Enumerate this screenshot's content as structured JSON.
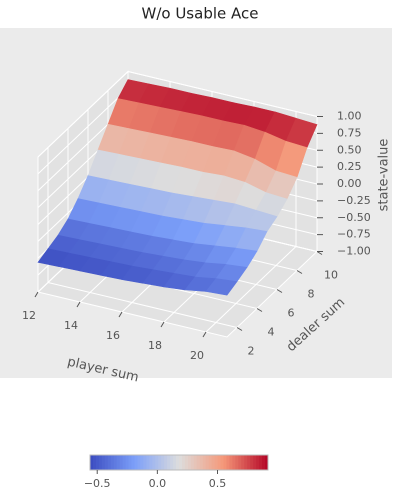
{
  "chart_data": {
    "type": "surface",
    "title": "W/o Usable Ace",
    "xlabel": "player sum",
    "ylabel": "dealer sum",
    "zlabel": "state-value",
    "x": [
      12,
      13,
      14,
      15,
      16,
      17,
      18,
      19,
      20,
      21
    ],
    "y": [
      1,
      2,
      3,
      4,
      5,
      6,
      7,
      8,
      9,
      10
    ],
    "z": [
      [
        -0.56,
        -0.5,
        -0.44,
        -0.34,
        -0.18,
        0.02,
        0.26,
        0.5,
        0.74,
        0.88
      ],
      [
        -0.55,
        -0.49,
        -0.43,
        -0.33,
        -0.17,
        0.03,
        0.27,
        0.51,
        0.75,
        0.89
      ],
      [
        -0.54,
        -0.48,
        -0.42,
        -0.32,
        -0.16,
        0.04,
        0.28,
        0.52,
        0.76,
        0.9
      ],
      [
        -0.53,
        -0.47,
        -0.41,
        -0.31,
        -0.15,
        0.05,
        0.29,
        0.53,
        0.77,
        0.9
      ],
      [
        -0.52,
        -0.46,
        -0.4,
        -0.3,
        -0.14,
        0.06,
        0.3,
        0.54,
        0.78,
        0.91
      ],
      [
        -0.5,
        -0.44,
        -0.38,
        -0.28,
        -0.12,
        0.08,
        0.3,
        0.54,
        0.78,
        0.91
      ],
      [
        -0.48,
        -0.42,
        -0.36,
        -0.26,
        -0.1,
        0.1,
        0.32,
        0.55,
        0.79,
        0.92
      ],
      [
        -0.45,
        -0.4,
        -0.33,
        -0.22,
        -0.06,
        0.12,
        0.3,
        0.5,
        0.76,
        0.92
      ],
      [
        -0.4,
        -0.35,
        -0.28,
        -0.18,
        -0.02,
        0.1,
        0.22,
        0.4,
        0.7,
        0.9
      ],
      [
        -0.38,
        -0.32,
        -0.25,
        -0.15,
        0.0,
        0.08,
        0.2,
        0.38,
        0.68,
        0.88
      ]
    ],
    "xlim": [
      12,
      21
    ],
    "ylim": [
      1,
      10
    ],
    "zlim": [
      -1,
      1
    ],
    "xticks": [
      12,
      14,
      16,
      18,
      20
    ],
    "yticks": [
      2,
      4,
      6,
      8,
      10
    ],
    "zticks": [
      {
        "value": -1,
        "label": "−1.00"
      },
      {
        "value": -0.75,
        "label": "−0.75"
      },
      {
        "value": -0.5,
        "label": "−0.50"
      },
      {
        "value": -0.25,
        "label": "−0.25"
      },
      {
        "value": 0,
        "label": "0.00"
      },
      {
        "value": 0.25,
        "label": "0.25"
      },
      {
        "value": 0.5,
        "label": "0.50"
      },
      {
        "value": 0.75,
        "label": "0.75"
      },
      {
        "value": 1,
        "label": "1.00"
      }
    ],
    "colormap": "coolwarm",
    "colorbar": {
      "clim": [
        -0.56,
        0.92
      ],
      "ticks": [
        {
          "value": -0.5,
          "label": "−0.5"
        },
        {
          "value": 0,
          "label": "0.0"
        },
        0.5
      ]
    }
  }
}
